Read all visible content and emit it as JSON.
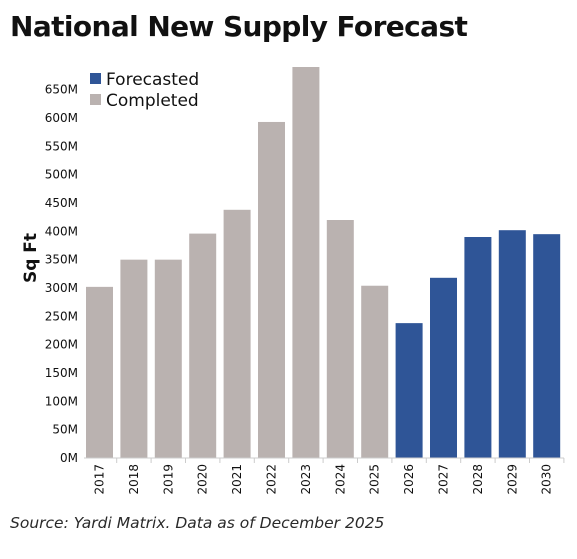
{
  "title": "National New Supply Forecast",
  "source": "Source: Yardi Matrix. Data as of December 2025",
  "chart_data": {
    "type": "bar",
    "title": "National New Supply Forecast",
    "ylabel": "Sq Ft",
    "xlabel": "",
    "ylim": [
      0,
      690
    ],
    "yticks": [
      0,
      50,
      100,
      150,
      200,
      250,
      300,
      350,
      400,
      450,
      500,
      550,
      600,
      650
    ],
    "ytick_labels": [
      "0M",
      "50M",
      "100M",
      "150M",
      "200M",
      "250M",
      "300M",
      "350M",
      "400M",
      "450M",
      "500M",
      "550M",
      "600M",
      "650M"
    ],
    "grid": false,
    "legend_position": "top-left",
    "categories": [
      "2017",
      "2018",
      "2019",
      "2020",
      "2021",
      "2022",
      "2023",
      "2024",
      "2025",
      "2026",
      "2027",
      "2028",
      "2029",
      "2030"
    ],
    "values": [
      302,
      350,
      350,
      396,
      438,
      593,
      690,
      420,
      304,
      238,
      318,
      390,
      402,
      395
    ],
    "series": [
      {
        "name": "Forecasted",
        "color": "#2f5597",
        "categories": [
          "2026",
          "2027",
          "2028",
          "2029",
          "2030"
        ]
      },
      {
        "name": "Completed",
        "color": "#bab2b0",
        "categories": [
          "2017",
          "2018",
          "2019",
          "2020",
          "2021",
          "2022",
          "2023",
          "2024",
          "2025"
        ]
      }
    ],
    "legend": [
      {
        "name": "Forecasted",
        "color": "#2f5597"
      },
      {
        "name": "Completed",
        "color": "#bab2b0"
      }
    ]
  }
}
